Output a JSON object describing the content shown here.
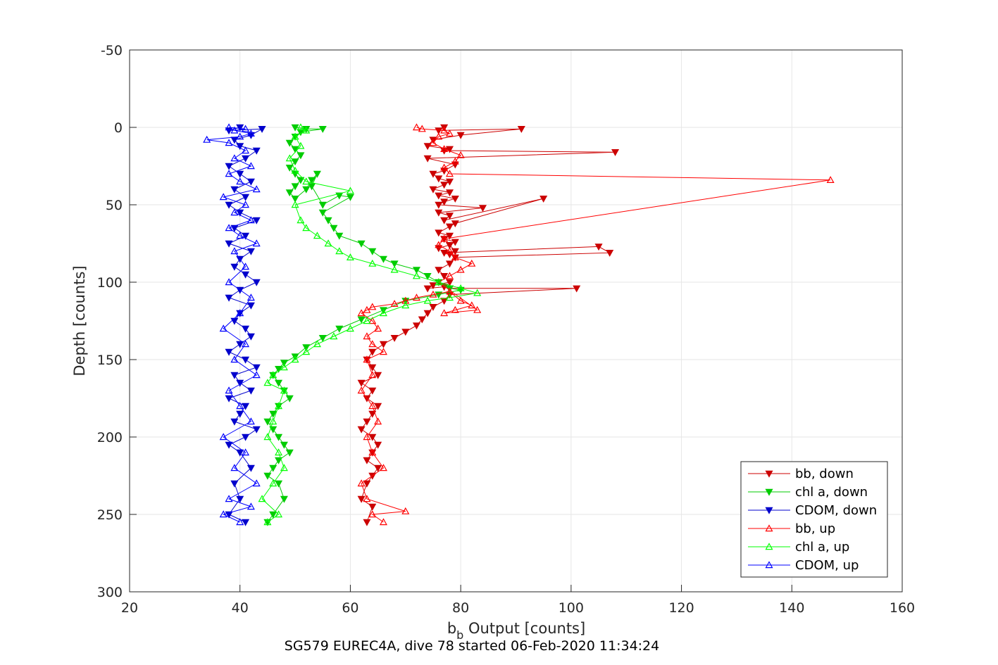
{
  "chart_data": {
    "type": "line",
    "title": "",
    "xlabel": {
      "base": "b",
      "sub": "b",
      "rest": " Output [counts]"
    },
    "ylabel": "Depth [counts]",
    "xlim": [
      20,
      160
    ],
    "ylim": [
      -50,
      300
    ],
    "y_reversed": true,
    "grid": true,
    "x_ticks": [
      "20",
      "40",
      "60",
      "80",
      "100",
      "120",
      "140",
      "160"
    ],
    "y_ticks": [
      "-50",
      "0",
      "50",
      "100",
      "150",
      "200",
      "250",
      "300"
    ],
    "legend_position": "bottom-right",
    "caption": "SG579 EUREC4A, dive 78 started 06-Feb-2020 11:34:24",
    "series": [
      {
        "name": "bb, down",
        "color": "#cc0000",
        "marker": "triangle-down",
        "x": [
          77,
          76,
          91,
          80,
          75,
          74,
          78,
          77,
          108,
          74,
          79,
          77,
          75,
          76,
          78,
          77,
          75,
          78,
          76,
          79,
          77,
          76,
          84,
          76,
          78,
          77,
          95,
          79,
          78,
          76,
          78,
          77,
          79,
          78,
          76,
          78,
          79,
          78,
          77,
          105,
          107,
          79,
          78,
          76,
          77,
          78,
          75,
          74,
          77,
          78,
          101,
          78,
          77,
          75,
          74,
          73,
          72,
          70,
          68,
          66,
          64,
          63,
          64,
          65,
          62,
          64,
          63,
          65,
          64,
          63,
          62,
          64,
          65,
          64,
          63,
          65,
          64,
          63,
          62,
          64,
          63
        ],
        "y": [
          0,
          2,
          1,
          5,
          8,
          12,
          14,
          15,
          16,
          20,
          24,
          28,
          30,
          33,
          35,
          37,
          40,
          42,
          44,
          46,
          48,
          50,
          52,
          55,
          57,
          60,
          46,
          62,
          64,
          68,
          70,
          72,
          74,
          76,
          78,
          76,
          80,
          82,
          81,
          77,
          81,
          84,
          88,
          92,
          96,
          100,
          102,
          104,
          103,
          104,
          104,
          108,
          112,
          116,
          120,
          124,
          128,
          132,
          136,
          140,
          145,
          150,
          155,
          160,
          165,
          170,
          175,
          180,
          185,
          190,
          195,
          200,
          205,
          210,
          215,
          220,
          225,
          230,
          240,
          245,
          255
        ]
      },
      {
        "name": "chl a, down",
        "color": "#00cc00",
        "marker": "triangle-down",
        "x": [
          50,
          52,
          55,
          51,
          50,
          49,
          50,
          51,
          50,
          49,
          50,
          51,
          50,
          49,
          50,
          52,
          53,
          54,
          53,
          55,
          58,
          60,
          55,
          56,
          57,
          58,
          62,
          64,
          66,
          68,
          72,
          74,
          76,
          78,
          80,
          76,
          70,
          66,
          62,
          58,
          55,
          52,
          50,
          48,
          47,
          46,
          47,
          48,
          49,
          47,
          46,
          45,
          46,
          47,
          48,
          49,
          47,
          46,
          45,
          47,
          48,
          46,
          45
        ],
        "y": [
          0,
          1,
          1,
          3,
          6,
          10,
          14,
          18,
          22,
          26,
          30,
          34,
          38,
          42,
          46,
          40,
          34,
          30,
          38,
          50,
          44,
          45,
          55,
          60,
          65,
          70,
          75,
          80,
          85,
          88,
          92,
          96,
          100,
          104,
          105,
          108,
          112,
          118,
          124,
          130,
          136,
          142,
          148,
          152,
          156,
          160,
          165,
          170,
          175,
          180,
          185,
          190,
          195,
          200,
          205,
          210,
          215,
          220,
          225,
          230,
          240,
          250,
          255
        ]
      },
      {
        "name": "CDOM, down",
        "color": "#0000cc",
        "marker": "triangle-down",
        "x": [
          40,
          38,
          44,
          42,
          39,
          40,
          43,
          41,
          38,
          40,
          42,
          39,
          41,
          38,
          40,
          43,
          39,
          41,
          38,
          42,
          40,
          39,
          41,
          43,
          40,
          38,
          42,
          40,
          39,
          41,
          42,
          40,
          38,
          41,
          43,
          39,
          40,
          42,
          38,
          41,
          40,
          39,
          43,
          41,
          38,
          40,
          42,
          39,
          40,
          38,
          41
        ],
        "y": [
          0,
          2,
          1,
          5,
          8,
          12,
          15,
          20,
          25,
          30,
          35,
          40,
          45,
          50,
          55,
          60,
          65,
          70,
          75,
          80,
          85,
          90,
          95,
          100,
          105,
          110,
          115,
          120,
          125,
          130,
          135,
          140,
          145,
          150,
          155,
          160,
          165,
          170,
          175,
          180,
          185,
          190,
          195,
          200,
          205,
          210,
          220,
          230,
          240,
          250,
          255
        ]
      },
      {
        "name": "bb, up",
        "color": "#ff0000",
        "marker": "triangle-up",
        "x": [
          66,
          64,
          70,
          63,
          62,
          66,
          64,
          63,
          65,
          64,
          62,
          64,
          63,
          66,
          64,
          63,
          65,
          64,
          62,
          63,
          64,
          68,
          70,
          72,
          75,
          78,
          80,
          82,
          79,
          77,
          83,
          76,
          78,
          80,
          82,
          79,
          78,
          76,
          77,
          147,
          78,
          77,
          79,
          80,
          77,
          75,
          76,
          78,
          77,
          73,
          72
        ],
        "y": [
          255,
          250,
          248,
          240,
          230,
          220,
          210,
          200,
          190,
          180,
          170,
          160,
          150,
          145,
          140,
          135,
          130,
          125,
          120,
          118,
          116,
          114,
          112,
          110,
          108,
          106,
          112,
          115,
          118,
          120,
          118,
          100,
          96,
          92,
          88,
          84,
          80,
          76,
          72,
          34,
          30,
          26,
          22,
          18,
          14,
          10,
          6,
          4,
          2,
          1,
          0
        ]
      },
      {
        "name": "chl a, up",
        "color": "#00ff00",
        "marker": "triangle-up",
        "x": [
          45,
          47,
          44,
          46,
          48,
          47,
          45,
          46,
          47,
          48,
          45,
          46,
          48,
          50,
          52,
          54,
          57,
          60,
          63,
          66,
          70,
          74,
          78,
          83,
          80,
          76,
          72,
          68,
          64,
          60,
          58,
          56,
          54,
          52,
          51,
          50,
          60,
          52,
          50,
          49,
          51,
          50,
          52,
          51
        ],
        "y": [
          255,
          250,
          240,
          230,
          220,
          210,
          200,
          190,
          180,
          170,
          165,
          160,
          155,
          150,
          145,
          140,
          135,
          130,
          125,
          120,
          115,
          112,
          110,
          107,
          104,
          100,
          96,
          92,
          88,
          84,
          80,
          75,
          70,
          65,
          60,
          50,
          41,
          35,
          28,
          20,
          12,
          6,
          2,
          0
        ]
      },
      {
        "name": "CDOM, up",
        "color": "#0000ff",
        "marker": "triangle-up",
        "x": [
          40,
          37,
          42,
          38,
          43,
          39,
          41,
          37,
          42,
          40,
          38,
          43,
          39,
          41,
          37,
          40,
          42,
          38,
          41,
          39,
          43,
          40,
          38,
          42,
          39,
          41,
          37,
          43,
          40,
          38,
          42,
          39,
          41,
          38,
          34,
          40,
          42,
          39,
          41,
          38
        ],
        "y": [
          255,
          250,
          245,
          240,
          230,
          220,
          210,
          200,
          190,
          180,
          170,
          160,
          150,
          140,
          130,
          120,
          110,
          100,
          90,
          80,
          75,
          70,
          65,
          60,
          55,
          50,
          45,
          40,
          35,
          30,
          25,
          20,
          15,
          10,
          8,
          6,
          4,
          2,
          1,
          0
        ]
      }
    ]
  }
}
